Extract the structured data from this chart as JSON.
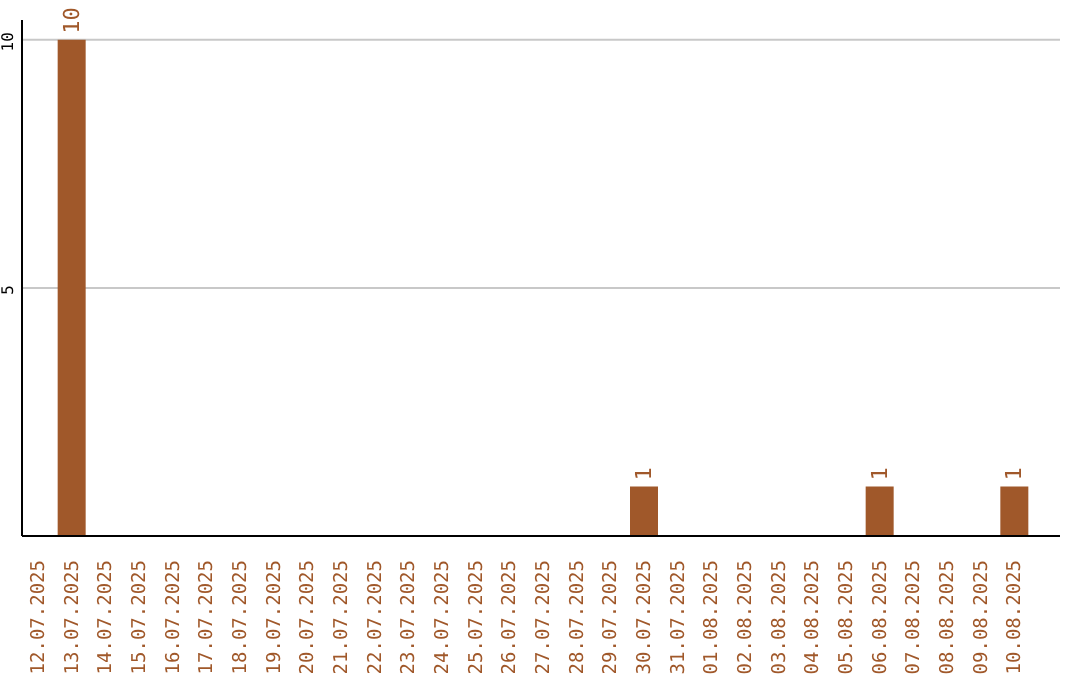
{
  "chart_data": {
    "type": "bar",
    "categories": [
      "12.07.2025",
      "13.07.2025",
      "14.07.2025",
      "15.07.2025",
      "16.07.2025",
      "17.07.2025",
      "18.07.2025",
      "19.07.2025",
      "20.07.2025",
      "21.07.2025",
      "22.07.2025",
      "23.07.2025",
      "24.07.2025",
      "25.07.2025",
      "26.07.2025",
      "27.07.2025",
      "28.07.2025",
      "29.07.2025",
      "30.07.2025",
      "31.07.2025",
      "01.08.2025",
      "02.08.2025",
      "03.08.2025",
      "04.08.2025",
      "05.08.2025",
      "06.08.2025",
      "07.08.2025",
      "08.08.2025",
      "09.08.2025",
      "10.08.2025"
    ],
    "values": [
      0,
      10,
      0,
      0,
      0,
      0,
      0,
      0,
      0,
      0,
      0,
      0,
      0,
      0,
      0,
      0,
      0,
      0,
      1,
      0,
      0,
      0,
      0,
      0,
      0,
      1,
      0,
      0,
      0,
      1
    ],
    "value_labels": [
      null,
      "10",
      null,
      null,
      null,
      null,
      null,
      null,
      null,
      null,
      null,
      null,
      null,
      null,
      null,
      null,
      null,
      null,
      "1",
      null,
      null,
      null,
      null,
      null,
      null,
      "1",
      null,
      null,
      null,
      "1"
    ],
    "color": "#a0582a",
    "ylim": [
      0,
      10.4
    ],
    "yticks": [
      5,
      10
    ],
    "grid": "y"
  }
}
